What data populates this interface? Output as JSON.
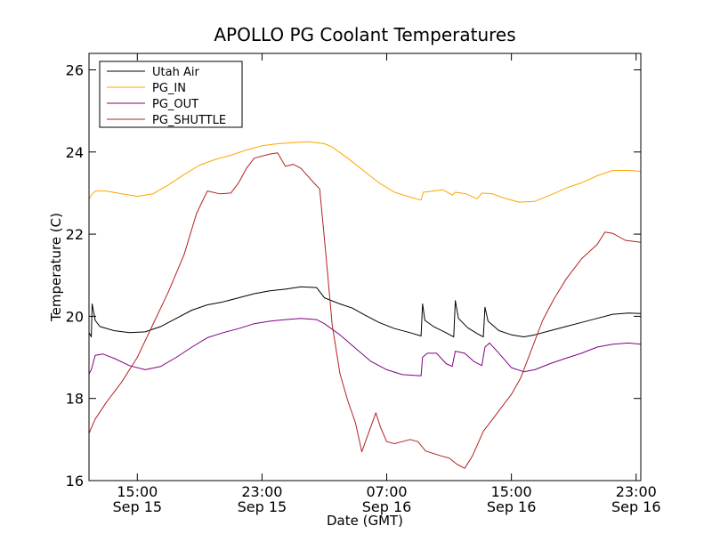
{
  "chart_data": {
    "type": "line",
    "title": "APOLLO PG Coolant Temperatures",
    "xlabel": "Date (GMT)",
    "ylabel": "Temperature (C)",
    "x_unit": "hours since Sep 15 00:00 GMT",
    "xlim": [
      11.9,
      47.3
    ],
    "ylim": [
      16,
      26.4
    ],
    "grid": false,
    "legend_position": "top-left",
    "x_ticks": [
      {
        "value": 15,
        "line1": "15:00",
        "line2": "Sep 15"
      },
      {
        "value": 23,
        "line1": "23:00",
        "line2": "Sep 15"
      },
      {
        "value": 31,
        "line1": "07:00",
        "line2": "Sep 16"
      },
      {
        "value": 39,
        "line1": "15:00",
        "line2": "Sep 16"
      },
      {
        "value": 47,
        "line1": "23:00",
        "line2": "Sep 16"
      }
    ],
    "y_ticks": [
      {
        "value": 16,
        "label": "16"
      },
      {
        "value": 18,
        "label": "18"
      },
      {
        "value": 20,
        "label": "20"
      },
      {
        "value": 22,
        "label": "22"
      },
      {
        "value": 24,
        "label": "24"
      },
      {
        "value": 26,
        "label": "26"
      }
    ],
    "series": [
      {
        "name": "Utah Air",
        "color": "#000000",
        "points": [
          [
            11.9,
            19.6
          ],
          [
            12.05,
            19.5
          ],
          [
            12.1,
            20.3
          ],
          [
            12.3,
            19.9
          ],
          [
            12.6,
            19.75
          ],
          [
            13.5,
            19.65
          ],
          [
            14.5,
            19.6
          ],
          [
            15.5,
            19.62
          ],
          [
            16.5,
            19.75
          ],
          [
            17.5,
            19.95
          ],
          [
            18.5,
            20.15
          ],
          [
            19.5,
            20.28
          ],
          [
            20.5,
            20.35
          ],
          [
            21.5,
            20.45
          ],
          [
            22.5,
            20.55
          ],
          [
            23.5,
            20.62
          ],
          [
            24.5,
            20.66
          ],
          [
            25.5,
            20.72
          ],
          [
            26.5,
            20.7
          ],
          [
            27,
            20.45
          ],
          [
            28,
            20.3
          ],
          [
            28.8,
            20.2
          ],
          [
            29.5,
            20.05
          ],
          [
            30.5,
            19.85
          ],
          [
            31.5,
            19.7
          ],
          [
            32.5,
            19.6
          ],
          [
            33.2,
            19.52
          ],
          [
            33.3,
            20.3
          ],
          [
            33.45,
            19.9
          ],
          [
            34,
            19.75
          ],
          [
            34.7,
            19.62
          ],
          [
            35.3,
            19.5
          ],
          [
            35.4,
            20.38
          ],
          [
            35.6,
            19.95
          ],
          [
            36.2,
            19.72
          ],
          [
            36.8,
            19.58
          ],
          [
            37.2,
            19.5
          ],
          [
            37.3,
            20.22
          ],
          [
            37.5,
            19.88
          ],
          [
            38.2,
            19.65
          ],
          [
            39,
            19.55
          ],
          [
            39.8,
            19.5
          ],
          [
            40.5,
            19.55
          ],
          [
            41.5,
            19.65
          ],
          [
            42.5,
            19.75
          ],
          [
            43.5,
            19.85
          ],
          [
            44.5,
            19.95
          ],
          [
            45.5,
            20.05
          ],
          [
            46.5,
            20.08
          ],
          [
            47.3,
            20.07
          ]
        ]
      },
      {
        "name": "PG_IN",
        "color": "#FFA500",
        "points": [
          [
            11.9,
            22.85
          ],
          [
            12.05,
            22.95
          ],
          [
            12.3,
            23.05
          ],
          [
            13,
            23.05
          ],
          [
            14,
            22.98
          ],
          [
            15,
            22.92
          ],
          [
            16,
            22.98
          ],
          [
            17,
            23.2
          ],
          [
            18,
            23.45
          ],
          [
            19,
            23.68
          ],
          [
            20,
            23.82
          ],
          [
            21,
            23.92
          ],
          [
            22,
            24.05
          ],
          [
            23,
            24.15
          ],
          [
            24,
            24.2
          ],
          [
            25,
            24.23
          ],
          [
            26,
            24.25
          ],
          [
            27,
            24.2
          ],
          [
            27.5,
            24.12
          ],
          [
            28.5,
            23.85
          ],
          [
            29.5,
            23.55
          ],
          [
            30.5,
            23.25
          ],
          [
            31.5,
            23.02
          ],
          [
            32.5,
            22.9
          ],
          [
            33.2,
            22.83
          ],
          [
            33.35,
            23.02
          ],
          [
            34,
            23.05
          ],
          [
            34.6,
            23.08
          ],
          [
            35.2,
            22.95
          ],
          [
            35.4,
            23.02
          ],
          [
            36.1,
            22.98
          ],
          [
            36.8,
            22.86
          ],
          [
            37.1,
            23.0
          ],
          [
            37.8,
            22.98
          ],
          [
            38.5,
            22.88
          ],
          [
            39.5,
            22.78
          ],
          [
            40.5,
            22.8
          ],
          [
            41.5,
            22.95
          ],
          [
            42.5,
            23.12
          ],
          [
            43.5,
            23.25
          ],
          [
            44.5,
            23.42
          ],
          [
            45.5,
            23.55
          ],
          [
            46.5,
            23.55
          ],
          [
            47.3,
            23.53
          ]
        ]
      },
      {
        "name": "PG_OUT",
        "color": "#800080",
        "points": [
          [
            11.9,
            18.6
          ],
          [
            12.05,
            18.7
          ],
          [
            12.3,
            19.05
          ],
          [
            12.8,
            19.08
          ],
          [
            13.5,
            18.98
          ],
          [
            14.5,
            18.8
          ],
          [
            15.5,
            18.7
          ],
          [
            16.5,
            18.78
          ],
          [
            17.5,
            19.0
          ],
          [
            18.5,
            19.25
          ],
          [
            19.5,
            19.48
          ],
          [
            20.5,
            19.6
          ],
          [
            21.5,
            19.7
          ],
          [
            22.5,
            19.82
          ],
          [
            23.5,
            19.88
          ],
          [
            24.5,
            19.92
          ],
          [
            25.5,
            19.95
          ],
          [
            26.5,
            19.92
          ],
          [
            27,
            19.82
          ],
          [
            28,
            19.55
          ],
          [
            29,
            19.22
          ],
          [
            30,
            18.9
          ],
          [
            31,
            18.7
          ],
          [
            32,
            18.58
          ],
          [
            33.2,
            18.55
          ],
          [
            33.3,
            19.0
          ],
          [
            33.6,
            19.1
          ],
          [
            34.2,
            19.1
          ],
          [
            34.8,
            18.85
          ],
          [
            35.2,
            18.78
          ],
          [
            35.4,
            19.15
          ],
          [
            36,
            19.1
          ],
          [
            36.6,
            18.9
          ],
          [
            37.1,
            18.8
          ],
          [
            37.3,
            19.25
          ],
          [
            37.6,
            19.35
          ],
          [
            38.2,
            19.1
          ],
          [
            39,
            18.75
          ],
          [
            39.8,
            18.65
          ],
          [
            40.5,
            18.7
          ],
          [
            41.5,
            18.85
          ],
          [
            42.5,
            18.98
          ],
          [
            43.5,
            19.1
          ],
          [
            44.5,
            19.25
          ],
          [
            45.5,
            19.32
          ],
          [
            46.5,
            19.35
          ],
          [
            47.3,
            19.32
          ]
        ]
      },
      {
        "name": "PG_SHUTTLE",
        "color": "#B22222",
        "points": [
          [
            11.9,
            17.15
          ],
          [
            12.3,
            17.5
          ],
          [
            13,
            17.9
          ],
          [
            14,
            18.4
          ],
          [
            15,
            19.0
          ],
          [
            16,
            19.8
          ],
          [
            17,
            20.6
          ],
          [
            18,
            21.5
          ],
          [
            18.8,
            22.5
          ],
          [
            19.3,
            22.9
          ],
          [
            19.5,
            23.05
          ],
          [
            20.3,
            22.98
          ],
          [
            21,
            23.0
          ],
          [
            21.5,
            23.25
          ],
          [
            22,
            23.6
          ],
          [
            22.5,
            23.85
          ],
          [
            23.5,
            23.95
          ],
          [
            24,
            23.98
          ],
          [
            24.5,
            23.65
          ],
          [
            25,
            23.7
          ],
          [
            25.5,
            23.6
          ],
          [
            26.2,
            23.3
          ],
          [
            26.7,
            23.1
          ],
          [
            27.1,
            21.5
          ],
          [
            27.5,
            19.8
          ],
          [
            28,
            18.6
          ],
          [
            28.5,
            17.95
          ],
          [
            29,
            17.4
          ],
          [
            29.4,
            16.7
          ],
          [
            30.3,
            17.65
          ],
          [
            30.6,
            17.3
          ],
          [
            31,
            16.95
          ],
          [
            31.5,
            16.9
          ],
          [
            32,
            16.95
          ],
          [
            32.5,
            17.0
          ],
          [
            33,
            16.95
          ],
          [
            33.5,
            16.72
          ],
          [
            34.5,
            16.6
          ],
          [
            35,
            16.55
          ],
          [
            35.5,
            16.4
          ],
          [
            36,
            16.3
          ],
          [
            36.5,
            16.6
          ],
          [
            37.2,
            17.2
          ],
          [
            38,
            17.6
          ],
          [
            39,
            18.1
          ],
          [
            39.6,
            18.5
          ],
          [
            40.3,
            19.2
          ],
          [
            41,
            19.9
          ],
          [
            41.7,
            20.4
          ],
          [
            42.5,
            20.9
          ],
          [
            43.5,
            21.4
          ],
          [
            44.5,
            21.75
          ],
          [
            45,
            22.05
          ],
          [
            45.5,
            22.02
          ],
          [
            46.3,
            21.85
          ],
          [
            47.3,
            21.8
          ]
        ]
      }
    ]
  }
}
